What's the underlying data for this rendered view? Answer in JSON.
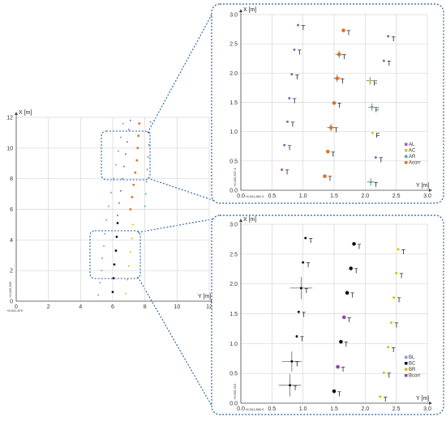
{
  "colors": {
    "frame": "#1f5f9f",
    "grid": "#d6d6d6",
    "AL": "#9b59b6",
    "AC": "#e0c020",
    "AR": "#4ab0a0",
    "Acorr": "#e07020",
    "BL": "#6fa8dc",
    "BC": "#111111",
    "BR": "#d4c000",
    "Bcorr": "#8e44ad"
  },
  "chart_data": [
    {
      "type": "scatter",
      "xlabel": "Y [m]",
      "ylabel": "X [m]",
      "xlim": [
        0,
        12
      ],
      "ylim": [
        0,
        12
      ],
      "xticks": [
        "0",
        "2",
        "4",
        "6",
        "8",
        "10",
        "12"
      ],
      "yticks": [
        "0",
        "2",
        "4",
        "6",
        "8",
        "10",
        "12"
      ],
      "origin_x": "+6,541,870",
      "origin_y": "+6,035,500",
      "grid": true,
      "series": [
        {
          "name": "",
          "color_key": "BL",
          "points": [
            [
              5.1,
              0.4
            ],
            [
              5.2,
              1.2
            ],
            [
              5.3,
              2.0
            ],
            [
              5.35,
              2.8
            ],
            [
              5.45,
              3.6
            ],
            [
              5.5,
              4.4
            ]
          ]
        },
        {
          "name": "",
          "color_key": "BC",
          "points": [
            [
              6.0,
              0.6
            ],
            [
              6.05,
              1.5
            ],
            [
              6.1,
              2.4
            ],
            [
              6.2,
              3.3
            ],
            [
              6.25,
              4.2
            ],
            [
              6.3,
              5.1
            ]
          ]
        },
        {
          "name": "",
          "color_key": "BR",
          "points": [
            [
              6.8,
              0.5
            ],
            [
              6.9,
              1.4
            ],
            [
              7.0,
              2.3
            ],
            [
              7.1,
              3.2
            ],
            [
              7.2,
              4.1
            ],
            [
              7.25,
              5.0
            ]
          ]
        },
        {
          "name": "",
          "color_key": "BL",
          "points": [
            [
              5.6,
              5.3
            ],
            [
              5.75,
              6.2
            ],
            [
              5.9,
              7.1
            ],
            [
              6.05,
              8.0
            ],
            [
              6.2,
              8.9
            ],
            [
              6.35,
              9.8
            ],
            [
              6.5,
              10.7
            ],
            [
              6.65,
              11.6
            ]
          ]
        },
        {
          "name": "",
          "color_key": "AL",
          "points": [
            [
              6.3,
              5.6
            ],
            [
              6.4,
              6.4
            ],
            [
              6.5,
              7.2
            ],
            [
              6.6,
              8.0
            ],
            [
              6.7,
              8.8
            ],
            [
              6.8,
              9.6
            ],
            [
              6.9,
              10.4
            ],
            [
              7.0,
              11.2
            ],
            [
              7.1,
              11.8
            ]
          ]
        },
        {
          "name": "",
          "color_key": "Acorr",
          "points": [
            [
              7.1,
              6.0
            ],
            [
              7.2,
              6.8
            ],
            [
              7.3,
              7.6
            ],
            [
              7.4,
              8.4
            ],
            [
              7.5,
              9.2
            ],
            [
              7.55,
              10.0
            ],
            [
              7.6,
              10.8
            ],
            [
              7.65,
              11.6
            ]
          ]
        },
        {
          "name": "",
          "color_key": "AR",
          "points": [
            [
              8.0,
              6.2
            ],
            [
              8.05,
              7.0
            ],
            [
              8.1,
              7.8
            ],
            [
              8.15,
              8.6
            ],
            [
              8.2,
              9.4
            ],
            [
              8.25,
              10.2
            ],
            [
              8.3,
              11.0
            ],
            [
              8.35,
              11.7
            ]
          ]
        }
      ]
    },
    {
      "type": "scatter",
      "xlabel": "Y [m]",
      "ylabel": "X [m]",
      "xlim": [
        0,
        3
      ],
      "ylim": [
        0,
        3
      ],
      "xticks": [
        "0.0",
        "0.5",
        "1.0",
        "1.5",
        "2.0",
        "2.5",
        "3.0"
      ],
      "yticks": [
        "0.0",
        "0.5",
        "1.0",
        "1.5",
        "2.0",
        "2.5",
        "3.0"
      ],
      "origin_x": "+6,541,881.5",
      "origin_y": "+6,035,507.4",
      "grid": true,
      "legend": [
        "AL",
        "AC",
        "AR",
        "Acorr"
      ],
      "legend_position": "bottom-right",
      "points": [
        {
          "s": "AL",
          "x": 0.92,
          "y": 2.82,
          "lab": "T"
        },
        {
          "s": "AL",
          "x": 0.86,
          "y": 2.4,
          "lab": "T"
        },
        {
          "s": "AL",
          "x": 0.82,
          "y": 1.98,
          "lab": "T"
        },
        {
          "s": "AL",
          "x": 0.78,
          "y": 1.57,
          "lab": "T"
        },
        {
          "s": "AL",
          "x": 0.75,
          "y": 1.17,
          "lab": "T"
        },
        {
          "s": "AL",
          "x": 0.7,
          "y": 0.77,
          "lab": "T"
        },
        {
          "s": "AL",
          "x": 0.66,
          "y": 0.35,
          "lab": "T"
        },
        {
          "s": "Acorr",
          "x": 1.65,
          "y": 2.73,
          "lab": "T",
          "big": true
        },
        {
          "s": "Acorr",
          "x": 1.58,
          "y": 2.32,
          "lab": "T",
          "big": true,
          "cross": true
        },
        {
          "s": "Acorr",
          "x": 1.55,
          "y": 1.91,
          "lab": "T",
          "big": true,
          "cross": true
        },
        {
          "s": "Acorr",
          "x": 1.5,
          "y": 1.49,
          "lab": "T",
          "big": true
        },
        {
          "s": "Acorr",
          "x": 1.45,
          "y": 1.07,
          "lab": "T",
          "big": true,
          "cross": true
        },
        {
          "s": "Acorr",
          "x": 1.4,
          "y": 0.66,
          "lab": "T",
          "big": true
        },
        {
          "s": "Acorr",
          "x": 1.35,
          "y": 0.24,
          "lab": "T",
          "big": true
        },
        {
          "s": "AL",
          "x": 2.37,
          "y": 2.63,
          "lab": "T"
        },
        {
          "s": "AL",
          "x": 2.3,
          "y": 2.21,
          "lab": "T"
        },
        {
          "s": "AC",
          "x": 2.08,
          "y": 1.87,
          "lab": "F",
          "cross": true
        },
        {
          "s": "AR",
          "x": 2.11,
          "y": 1.42,
          "lab": "F",
          "cross": true
        },
        {
          "s": "AC",
          "x": 2.12,
          "y": 0.98,
          "lab": "F"
        },
        {
          "s": "AL",
          "x": 2.17,
          "y": 0.56,
          "lab": "T"
        },
        {
          "s": "AR",
          "x": 2.09,
          "y": 0.14,
          "lab": "T",
          "cross": true
        }
      ]
    },
    {
      "type": "scatter",
      "xlabel": "Y [m]",
      "ylabel": "X [m]",
      "xlim": [
        0,
        3
      ],
      "ylim": [
        0,
        3
      ],
      "xticks": [
        "0.0",
        "0.5",
        "1.0",
        "1.5",
        "2.0",
        "2.5",
        "3.0"
      ],
      "yticks": [
        "0.0",
        "0.5",
        "1.0",
        "1.5",
        "2.0",
        "2.5",
        "3.0"
      ],
      "origin_x": "+6,541,880.5",
      "origin_y": "+6,035,510",
      "grid": true,
      "legend": [
        "BL",
        "BC",
        "BR",
        "Bcorr"
      ],
      "legend_position": "bottom-right",
      "points": [
        {
          "s": "BC",
          "x": 1.04,
          "y": 2.77,
          "lab": "T"
        },
        {
          "s": "BC",
          "x": 1.0,
          "y": 2.36,
          "lab": "T"
        },
        {
          "s": "BC",
          "x": 0.97,
          "y": 1.93,
          "lab": "T",
          "cross": true,
          "crossSize": 0.18
        },
        {
          "s": "BC",
          "x": 0.93,
          "y": 1.53,
          "lab": "T"
        },
        {
          "s": "BC",
          "x": 0.9,
          "y": 1.12,
          "lab": "T"
        },
        {
          "s": "BC",
          "x": 0.82,
          "y": 0.7,
          "lab": "T",
          "cross": true,
          "crossSize": 0.16
        },
        {
          "s": "BC",
          "x": 0.79,
          "y": 0.3,
          "lab": "T",
          "cross": true,
          "crossSize": 0.18
        },
        {
          "s": "BC",
          "x": 1.82,
          "y": 2.67,
          "lab": "T",
          "big": true
        },
        {
          "s": "BC",
          "x": 1.77,
          "y": 2.26,
          "lab": "T",
          "big": true
        },
        {
          "s": "BC",
          "x": 1.71,
          "y": 1.85,
          "lab": "T",
          "big": true
        },
        {
          "s": "Bcorr",
          "x": 1.66,
          "y": 1.44,
          "lab": "T",
          "big": true
        },
        {
          "s": "BC",
          "x": 1.61,
          "y": 1.03,
          "lab": "T",
          "big": true
        },
        {
          "s": "Bcorr",
          "x": 1.56,
          "y": 0.61,
          "lab": "T",
          "big": true
        },
        {
          "s": "BC",
          "x": 1.5,
          "y": 0.2,
          "lab": "T",
          "big": true
        },
        {
          "s": "BR",
          "x": 2.53,
          "y": 2.58,
          "lab": "T"
        },
        {
          "s": "BR",
          "x": 2.5,
          "y": 2.18,
          "lab": "T"
        },
        {
          "s": "BR",
          "x": 2.46,
          "y": 1.77,
          "lab": "T"
        },
        {
          "s": "BR",
          "x": 2.42,
          "y": 1.35,
          "lab": "T"
        },
        {
          "s": "BR",
          "x": 2.37,
          "y": 0.94,
          "lab": "T"
        },
        {
          "s": "BR",
          "x": 2.3,
          "y": 0.51,
          "lab": "T"
        },
        {
          "s": "BR",
          "x": 2.24,
          "y": 0.11,
          "lab": "T"
        }
      ]
    }
  ]
}
